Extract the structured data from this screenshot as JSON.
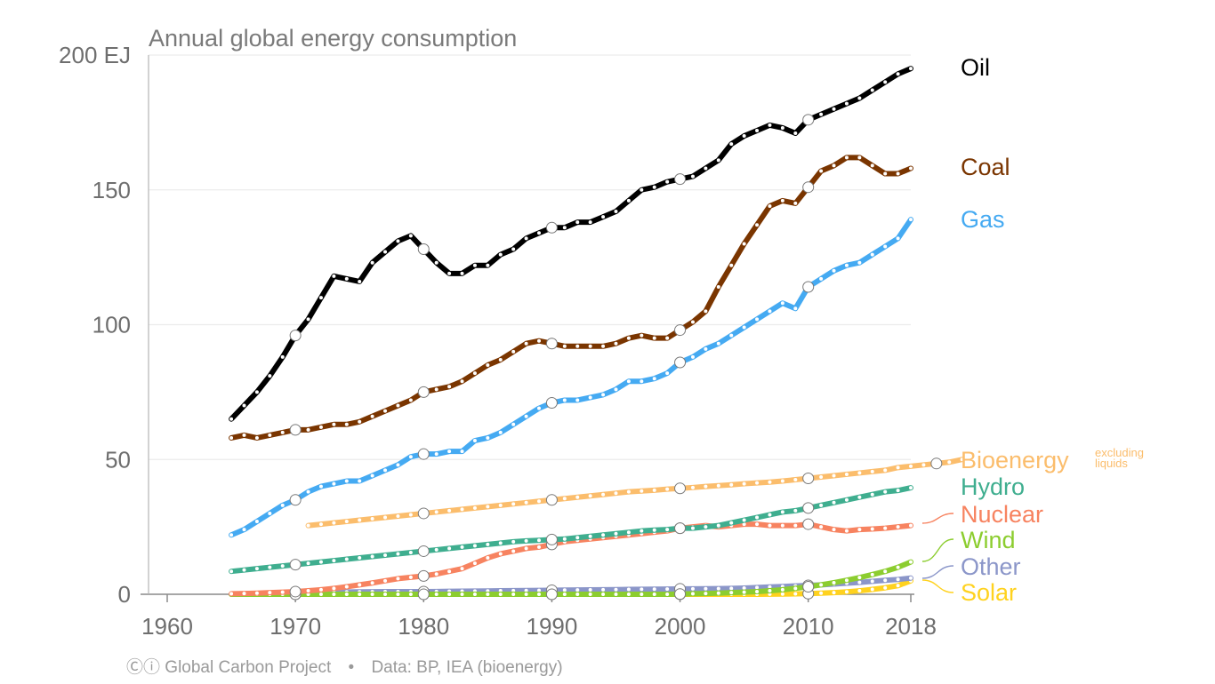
{
  "chart_data": {
    "type": "line",
    "title": "Annual global energy consumption",
    "ylim": [
      0,
      200
    ],
    "xlim": [
      1960,
      2018
    ],
    "x_ticks": [
      1960,
      1970,
      1980,
      1990,
      2000,
      2010,
      2018
    ],
    "y_ticks": [
      {
        "value": 0,
        "label": "0"
      },
      {
        "value": 50,
        "label": "50"
      },
      {
        "value": 100,
        "label": "100"
      },
      {
        "value": 150,
        "label": "150"
      },
      {
        "value": 200,
        "label": "200 EJ"
      }
    ],
    "grid": "horizontal",
    "legend": "direct labels at right end of lines",
    "series": [
      {
        "name": "Oil",
        "color": "#000000",
        "x_start": 1965,
        "values": [
          65,
          70,
          75,
          81,
          88,
          96,
          102,
          110,
          118,
          117,
          116,
          123,
          127,
          131,
          133,
          128,
          123,
          119,
          119,
          122,
          122,
          126,
          128,
          132,
          134,
          136,
          136,
          138,
          138,
          140,
          142,
          146,
          150,
          151,
          153,
          154,
          155,
          158,
          161,
          167,
          170,
          172,
          174,
          173,
          171,
          176,
          178,
          180,
          182,
          184,
          187,
          190,
          193,
          195
        ]
      },
      {
        "name": "Coal",
        "color": "#7a3500",
        "x_start": 1965,
        "values": [
          58,
          59,
          58,
          59,
          60,
          61,
          61,
          62,
          63,
          63,
          64,
          66,
          68,
          70,
          72,
          75,
          76,
          77,
          79,
          82,
          85,
          87,
          90,
          93,
          94,
          93,
          92,
          92,
          92,
          92,
          93,
          95,
          96,
          95,
          95,
          98,
          101,
          105,
          114,
          122,
          130,
          137,
          144,
          146,
          145,
          151,
          157,
          159,
          162,
          162,
          159,
          156,
          156,
          158
        ]
      },
      {
        "name": "Gas",
        "color": "#45aaf2",
        "x_start": 1965,
        "values": [
          22,
          24,
          27,
          30,
          33,
          35,
          38,
          40,
          41,
          42,
          42,
          44,
          46,
          48,
          51,
          52,
          52,
          53,
          53,
          57,
          58,
          60,
          63,
          66,
          69,
          71,
          72,
          72,
          73,
          74,
          76,
          79,
          79,
          80,
          82,
          86,
          88,
          91,
          93,
          96,
          99,
          102,
          105,
          108,
          106,
          114,
          117,
          120,
          122,
          123,
          126,
          129,
          132,
          139
        ]
      },
      {
        "name": "Bioenergy",
        "note": "excluding liquids",
        "color": "#fbbd6c",
        "x_start": 1971,
        "values": [
          25.5,
          26,
          26.5,
          27,
          27.5,
          28,
          28.5,
          29,
          29.5,
          30,
          30.5,
          31,
          31.5,
          32,
          32.5,
          33,
          33.5,
          34,
          34.5,
          35,
          35.5,
          36,
          36.5,
          37,
          37.5,
          38,
          38.3,
          38.6,
          39,
          39.3,
          39.6,
          40,
          40.3,
          40.6,
          41,
          41.3,
          41.6,
          42,
          42.5,
          43,
          43.5,
          44,
          44.5,
          45,
          45.5,
          46,
          47,
          47.5,
          48,
          48.5,
          49,
          50
        ]
      },
      {
        "name": "Hydro",
        "color": "#3fae8f",
        "x_start": 1965,
        "values": [
          8.5,
          9,
          9.5,
          10,
          10.5,
          11,
          11.5,
          12,
          12.5,
          13,
          13.5,
          14,
          14.5,
          15,
          15.5,
          16,
          16.5,
          17,
          17.5,
          18,
          18.5,
          19,
          19.5,
          19.8,
          20,
          20.3,
          20.5,
          21,
          21.5,
          22,
          22.5,
          23,
          23.5,
          23.8,
          24,
          24.5,
          24.5,
          25,
          25.5,
          26.5,
          27.5,
          28.5,
          29.5,
          30.5,
          31,
          32,
          33,
          34,
          35,
          36,
          37,
          38,
          38.5,
          39.5
        ]
      },
      {
        "name": "Nuclear",
        "color": "#f78360",
        "x_start": 1965,
        "values": [
          0.2,
          0.3,
          0.4,
          0.6,
          0.8,
          1,
          1.3,
          1.7,
          2.2,
          2.8,
          3.5,
          4.2,
          5,
          5.8,
          6.3,
          6.8,
          7.5,
          8.5,
          9.5,
          11.5,
          13.5,
          15,
          16,
          17,
          17.5,
          18.5,
          19.5,
          20,
          20.5,
          21,
          21.5,
          22,
          22.5,
          23,
          23.5,
          24.5,
          25,
          25.5,
          25,
          25.5,
          26,
          26,
          25.5,
          25.5,
          25.5,
          26,
          25,
          24,
          23.5,
          24,
          24.2,
          24.5,
          25,
          25.5
        ]
      },
      {
        "name": "Wind",
        "color": "#8ccd2f",
        "x_start": 1965,
        "values": [
          0,
          0,
          0,
          0,
          0,
          0,
          0,
          0,
          0,
          0,
          0,
          0,
          0,
          0,
          0,
          0,
          0,
          0,
          0,
          0,
          0,
          0,
          0,
          0,
          0,
          0,
          0,
          0,
          0,
          0,
          0,
          0,
          0,
          0,
          0,
          0.1,
          0.2,
          0.3,
          0.4,
          0.6,
          0.8,
          1,
          1.3,
          1.7,
          2.2,
          2.8,
          3.5,
          4.3,
          5.2,
          6.2,
          7.3,
          8.5,
          10,
          12
        ]
      },
      {
        "name": "Other",
        "color": "#8b96c9",
        "x_start": 1965,
        "values": [
          0,
          0.1,
          0.2,
          0.3,
          0.4,
          0.5,
          0.6,
          0.7,
          0.8,
          0.85,
          0.9,
          0.95,
          1,
          1,
          1,
          1,
          1.05,
          1.1,
          1.15,
          1.2,
          1.25,
          1.3,
          1.35,
          1.4,
          1.45,
          1.5,
          1.55,
          1.6,
          1.65,
          1.7,
          1.75,
          1.8,
          1.85,
          1.9,
          1.95,
          2,
          2,
          2.05,
          2.1,
          2.2,
          2.3,
          2.5,
          2.7,
          2.9,
          3.1,
          3.3,
          3.5,
          3.8,
          4.1,
          4.4,
          4.8,
          5.2,
          5.5,
          6
        ]
      },
      {
        "name": "Solar",
        "color": "#ffd21f",
        "x_start": 1965,
        "values": [
          0,
          0,
          0,
          0,
          0,
          0,
          0,
          0,
          0,
          0,
          0,
          0,
          0,
          0,
          0,
          0,
          0,
          0,
          0,
          0,
          0,
          0,
          0,
          0,
          0,
          0,
          0,
          0,
          0,
          0,
          0,
          0,
          0,
          0,
          0,
          0,
          0,
          0,
          0,
          0,
          0,
          0,
          0.05,
          0.1,
          0.15,
          0.25,
          0.4,
          0.6,
          0.9,
          1.3,
          1.8,
          2.4,
          3.2,
          5
        ]
      }
    ]
  },
  "footer": {
    "cc_icons": "Ⓒⓘ",
    "source": "Global Carbon Project",
    "separator": "•",
    "data_credit": "Data: BP, IEA (bioenergy)"
  }
}
